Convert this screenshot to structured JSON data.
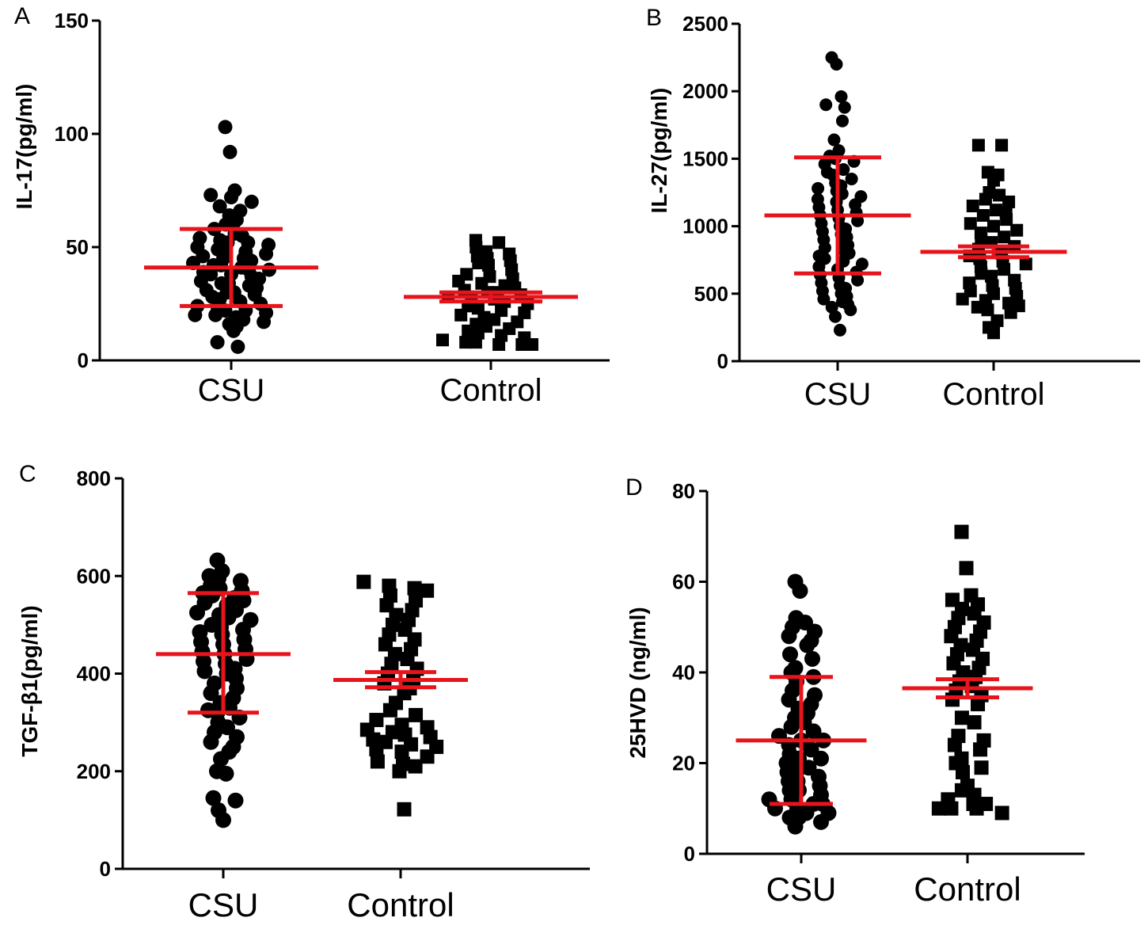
{
  "figure": {
    "background": "#ffffff",
    "marker_color": "#000000",
    "stat_color": "#e8141c"
  },
  "chart_data": [
    {
      "panel": "A",
      "type": "scatter",
      "ylabel": "IL-17(pg/ml)",
      "ylim": [
        0,
        150
      ],
      "yticks": [
        0,
        50,
        100,
        150
      ],
      "categories": [
        "CSU",
        "Control"
      ],
      "groups": [
        {
          "name": "CSU",
          "marker": "circle",
          "mean": 41,
          "upper": 58,
          "lower": 24,
          "values": [
            103,
            92,
            75,
            73,
            72,
            70,
            68,
            66,
            64,
            62,
            60,
            60,
            58,
            56,
            55,
            54,
            53,
            52,
            52,
            51,
            50,
            49,
            48,
            48,
            47,
            46,
            45,
            45,
            44,
            43,
            42,
            42,
            41,
            40,
            40,
            39,
            38,
            38,
            37,
            36,
            35,
            34,
            34,
            33,
            32,
            31,
            30,
            30,
            29,
            28,
            27,
            26,
            25,
            24,
            23,
            22,
            22,
            21,
            20,
            20,
            19,
            18,
            17,
            16,
            15,
            13,
            8,
            6
          ]
        },
        {
          "name": "Control",
          "marker": "square",
          "mean": 28,
          "upper": 30,
          "lower": 26,
          "values": [
            53,
            52,
            50,
            48,
            47,
            46,
            45,
            44,
            43,
            42,
            40,
            38,
            37,
            36,
            35,
            34,
            33,
            32,
            31,
            30,
            30,
            29,
            28,
            28,
            27,
            26,
            25,
            24,
            23,
            22,
            21,
            20,
            19,
            18,
            17,
            16,
            15,
            14,
            13,
            12,
            11,
            10,
            9,
            8,
            8,
            7,
            7,
            7
          ]
        }
      ]
    },
    {
      "panel": "B",
      "type": "scatter",
      "ylabel": "IL-27(pg/ml)",
      "ylim": [
        0,
        2500
      ],
      "yticks": [
        0,
        500,
        1000,
        1500,
        2000,
        2500
      ],
      "categories": [
        "CSU",
        "Control"
      ],
      "groups": [
        {
          "name": "CSU",
          "marker": "circle",
          "mean": 1080,
          "upper": 1510,
          "lower": 650,
          "values": [
            2250,
            2200,
            1960,
            1900,
            1880,
            1780,
            1640,
            1560,
            1520,
            1500,
            1480,
            1460,
            1420,
            1400,
            1380,
            1350,
            1320,
            1300,
            1280,
            1260,
            1240,
            1220,
            1200,
            1180,
            1160,
            1140,
            1120,
            1100,
            1080,
            1060,
            1040,
            1020,
            1000,
            980,
            960,
            940,
            920,
            900,
            880,
            860,
            840,
            820,
            800,
            780,
            760,
            740,
            720,
            700,
            680,
            660,
            640,
            620,
            600,
            580,
            560,
            540,
            520,
            500,
            480,
            460,
            440,
            420,
            400,
            380,
            330,
            230
          ]
        },
        {
          "name": "Control",
          "marker": "square",
          "mean": 810,
          "upper": 850,
          "lower": 770,
          "values": [
            1600,
            1600,
            1400,
            1380,
            1340,
            1250,
            1230,
            1200,
            1180,
            1150,
            1120,
            1100,
            1080,
            1050,
            1020,
            1000,
            970,
            950,
            920,
            900,
            880,
            850,
            830,
            800,
            780,
            760,
            740,
            720,
            700,
            680,
            650,
            630,
            600,
            580,
            560,
            540,
            520,
            500,
            480,
            460,
            450,
            430,
            410,
            400,
            380,
            360,
            300,
            250,
            210
          ]
        }
      ]
    },
    {
      "panel": "C",
      "type": "scatter",
      "ylabel": "TGF-β1(pg/ml)",
      "ylim": [
        0,
        800
      ],
      "yticks": [
        0,
        200,
        400,
        600,
        800
      ],
      "categories": [
        "CSU",
        "Control"
      ],
      "groups": [
        {
          "name": "CSU",
          "marker": "circle",
          "mean": 440,
          "upper": 565,
          "lower": 320,
          "values": [
            632,
            610,
            600,
            595,
            590,
            580,
            575,
            570,
            565,
            560,
            555,
            550,
            545,
            540,
            530,
            525,
            520,
            515,
            510,
            500,
            495,
            490,
            485,
            480,
            470,
            465,
            460,
            450,
            445,
            440,
            430,
            425,
            420,
            410,
            405,
            400,
            390,
            380,
            370,
            360,
            350,
            340,
            330,
            325,
            320,
            310,
            300,
            290,
            280,
            270,
            260,
            250,
            240,
            225,
            200,
            195,
            145,
            140,
            120,
            100
          ]
        },
        {
          "name": "Control",
          "marker": "square",
          "mean": 387,
          "upper": 403,
          "lower": 372,
          "values": [
            588,
            580,
            575,
            570,
            560,
            550,
            540,
            530,
            520,
            510,
            500,
            490,
            480,
            470,
            460,
            450,
            440,
            430,
            420,
            410,
            400,
            390,
            380,
            370,
            360,
            340,
            325,
            315,
            305,
            295,
            290,
            285,
            280,
            275,
            270,
            265,
            260,
            255,
            250,
            245,
            240,
            230,
            220,
            215,
            210,
            200,
            122
          ]
        }
      ]
    },
    {
      "panel": "D",
      "type": "scatter",
      "ylabel": "25HVD (ng/ml)",
      "ylim": [
        0,
        80
      ],
      "yticks": [
        0,
        20,
        40,
        60,
        80
      ],
      "categories": [
        "CSU",
        "Control"
      ],
      "groups": [
        {
          "name": "CSU",
          "marker": "circle",
          "mean": 25,
          "upper": 39,
          "lower": 11,
          "values": [
            60,
            58,
            52,
            51,
            50,
            49,
            48,
            47,
            46,
            44,
            43,
            41,
            40,
            39,
            38,
            36,
            35,
            34,
            33,
            32,
            31,
            30,
            29,
            28,
            27,
            26,
            25,
            25,
            24,
            23,
            22,
            21,
            21,
            20,
            19,
            18,
            18,
            17,
            16,
            16,
            15,
            14,
            14,
            13,
            12,
            12,
            11,
            11,
            10,
            10,
            9,
            9,
            8,
            8,
            7,
            6
          ]
        },
        {
          "name": "Control",
          "marker": "square",
          "mean": 36.5,
          "upper": 38.5,
          "lower": 34.5,
          "values": [
            71,
            63,
            57,
            56,
            55,
            54,
            53,
            52,
            51,
            50,
            49,
            48,
            47,
            46,
            45,
            44,
            43,
            42,
            41,
            40,
            39,
            38,
            37,
            36,
            35,
            34,
            33,
            30,
            29,
            26,
            25,
            24,
            23,
            21,
            20,
            19,
            18,
            15,
            14,
            13,
            12,
            11,
            11,
            10,
            10,
            10,
            9
          ]
        }
      ]
    }
  ]
}
